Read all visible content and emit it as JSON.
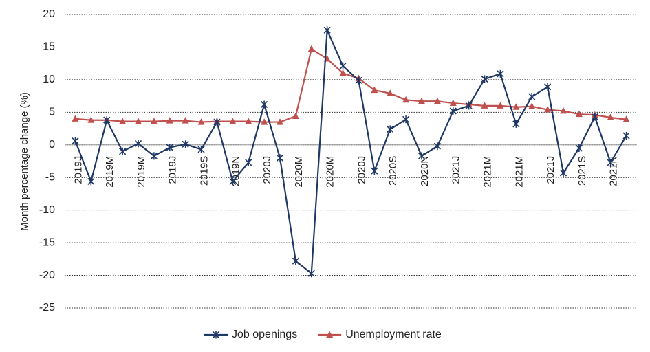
{
  "chart_data": {
    "type": "line",
    "y_label": "Month percentage change (%)",
    "categories": [
      "2019J",
      null,
      "2019M",
      null,
      "2019M",
      null,
      "2019J",
      null,
      "2019S",
      null,
      "2019N",
      null,
      "2020J",
      null,
      "2020M",
      null,
      "2020M",
      null,
      "2020J",
      null,
      "2020S",
      null,
      "2020N",
      null,
      "2021J",
      null,
      "2021M",
      null,
      "2021M",
      null,
      "2021J",
      null,
      "2021S",
      null,
      "2021N",
      null
    ],
    "series": [
      {
        "name": "Job openings",
        "color": "#1f3864",
        "marker": "asterisk",
        "values": [
          0.6,
          -5.6,
          3.8,
          -1.0,
          0.2,
          -1.7,
          -0.4,
          0.1,
          -0.7,
          3.5,
          -5.6,
          -2.7,
          6.2,
          -2.0,
          -17.8,
          -19.7,
          17.6,
          12.1,
          9.9,
          -4.0,
          2.4,
          3.9,
          -1.7,
          -0.2,
          5.2,
          6.0,
          10.1,
          10.9,
          3.2,
          7.4,
          8.9,
          -4.3,
          -0.5,
          4.3,
          -2.7,
          1.4
        ]
      },
      {
        "name": "Unemployment rate",
        "color": "#c0504d",
        "marker": "triangle",
        "values": [
          4.0,
          3.8,
          3.8,
          3.6,
          3.6,
          3.6,
          3.7,
          3.7,
          3.5,
          3.6,
          3.6,
          3.6,
          3.5,
          3.5,
          4.4,
          14.7,
          13.2,
          11.0,
          10.2,
          8.4,
          7.9,
          6.9,
          6.7,
          6.7,
          6.4,
          6.2,
          6.0,
          6.0,
          5.8,
          5.9,
          5.4,
          5.2,
          4.7,
          4.6,
          4.2,
          3.9
        ]
      }
    ],
    "ylim": [
      -25,
      20
    ],
    "yticks": [
      -25,
      -20,
      -15,
      -10,
      -5,
      0,
      5,
      10,
      15,
      20
    ],
    "grid": true,
    "legend": "bottom"
  }
}
